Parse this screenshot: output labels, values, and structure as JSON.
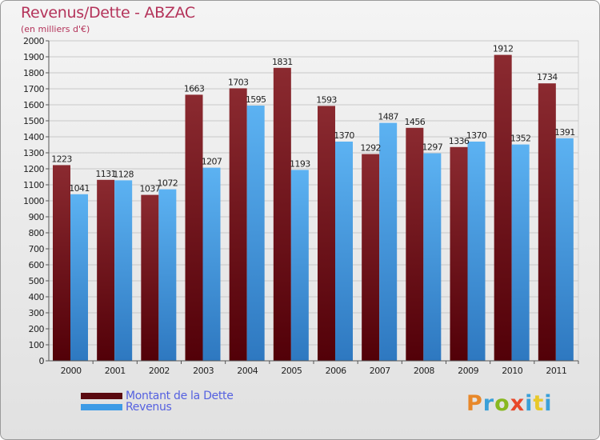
{
  "title": "Revenus/Dette - ABZAC",
  "subtitle": "(en milliers d'€)",
  "logo": {
    "text": "Proxiti",
    "colors": [
      "#e8882a",
      "#3aa0d8",
      "#88b820",
      "#e8482a",
      "#3aa0d8",
      "#e8c82a",
      "#3aa0d8"
    ]
  },
  "colors": {
    "dette": "#7a1f25",
    "revenus": "#4aa3e8"
  },
  "chart_data": {
    "type": "bar",
    "title": "Revenus/Dette - ABZAC",
    "subtitle": "(en milliers d'€)",
    "xlabel": "",
    "ylabel": "",
    "categories": [
      "2000",
      "2001",
      "2002",
      "2003",
      "2004",
      "2005",
      "2006",
      "2007",
      "2008",
      "2009",
      "2010",
      "2011"
    ],
    "series": [
      {
        "name": "Montant de la Dette",
        "values": [
          1223,
          1131,
          1037,
          1663,
          1703,
          1831,
          1593,
          1292,
          1456,
          1336,
          1912,
          1734
        ]
      },
      {
        "name": "Revenus",
        "values": [
          1041,
          1128,
          1072,
          1207,
          1595,
          1193,
          1370,
          1487,
          1297,
          1370,
          1352,
          1391
        ]
      }
    ],
    "ylim": [
      0,
      2000
    ],
    "ytick_step": 100,
    "grid": true,
    "legend_position": "bottom-left"
  }
}
